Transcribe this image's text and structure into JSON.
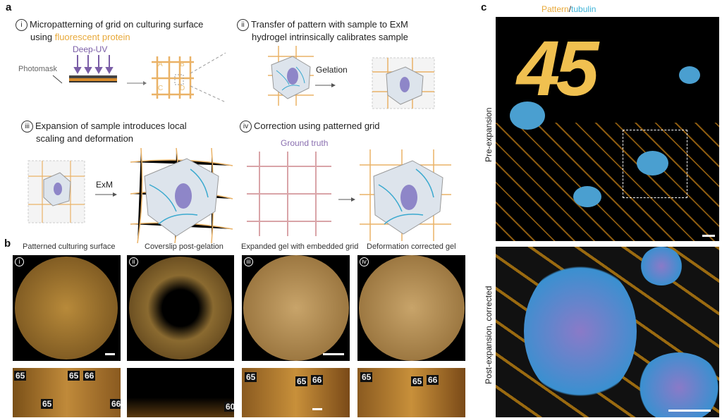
{
  "panel_a": {
    "label": "a",
    "step1": {
      "num": "i",
      "line1": "Micropatterning of grid on culturing surface",
      "line2_prefix": "using ",
      "line2_highlight": "fluorescent protein",
      "photomask": "Photomask",
      "deep_uv": "Deep-UV",
      "grid_letters": [
        "A",
        "B",
        "C",
        "D"
      ]
    },
    "step2": {
      "num": "ii",
      "line1": "Transfer of pattern with sample to ExM",
      "line2": "hydrogel intrinsically calibrates sample",
      "gelation": "Gelation"
    },
    "step3": {
      "num": "iii",
      "line1": "Expansion of sample introduces local",
      "line2": "scaling and deformation",
      "exm": "ExM"
    },
    "step4": {
      "num": "iv",
      "line1": "Correction using patterned grid",
      "ground_truth": "Ground truth"
    }
  },
  "panel_b": {
    "label": "b",
    "columns": [
      {
        "num": "i",
        "title": "Patterned culturing surface",
        "strip_numbers": [
          "65",
          "65",
          "66",
          "65",
          "66"
        ]
      },
      {
        "num": "ii",
        "title": "Coverslip post-gelation",
        "strip_numbers": [
          "60"
        ]
      },
      {
        "num": "iii",
        "title": "Expanded gel with embedded grid",
        "strip_numbers": [
          "65",
          "65",
          "66"
        ]
      },
      {
        "num": "iv",
        "title": "Deformation corrected gel",
        "strip_numbers": [
          "65",
          "65",
          "66"
        ]
      }
    ]
  },
  "panel_c": {
    "label": "c",
    "legend_pattern": "Pattern",
    "legend_sep": "/",
    "legend_tubulin": "tubulin",
    "pre_label": "Pre-expansion",
    "post_label": "Post-expansion, corrected",
    "pattern_numbers": "45"
  },
  "colors": {
    "pattern": "#e8a93a",
    "tubulin": "#3fb4d8",
    "uv": "#7b5ea7",
    "ground_truth": "#8a6fb0"
  }
}
